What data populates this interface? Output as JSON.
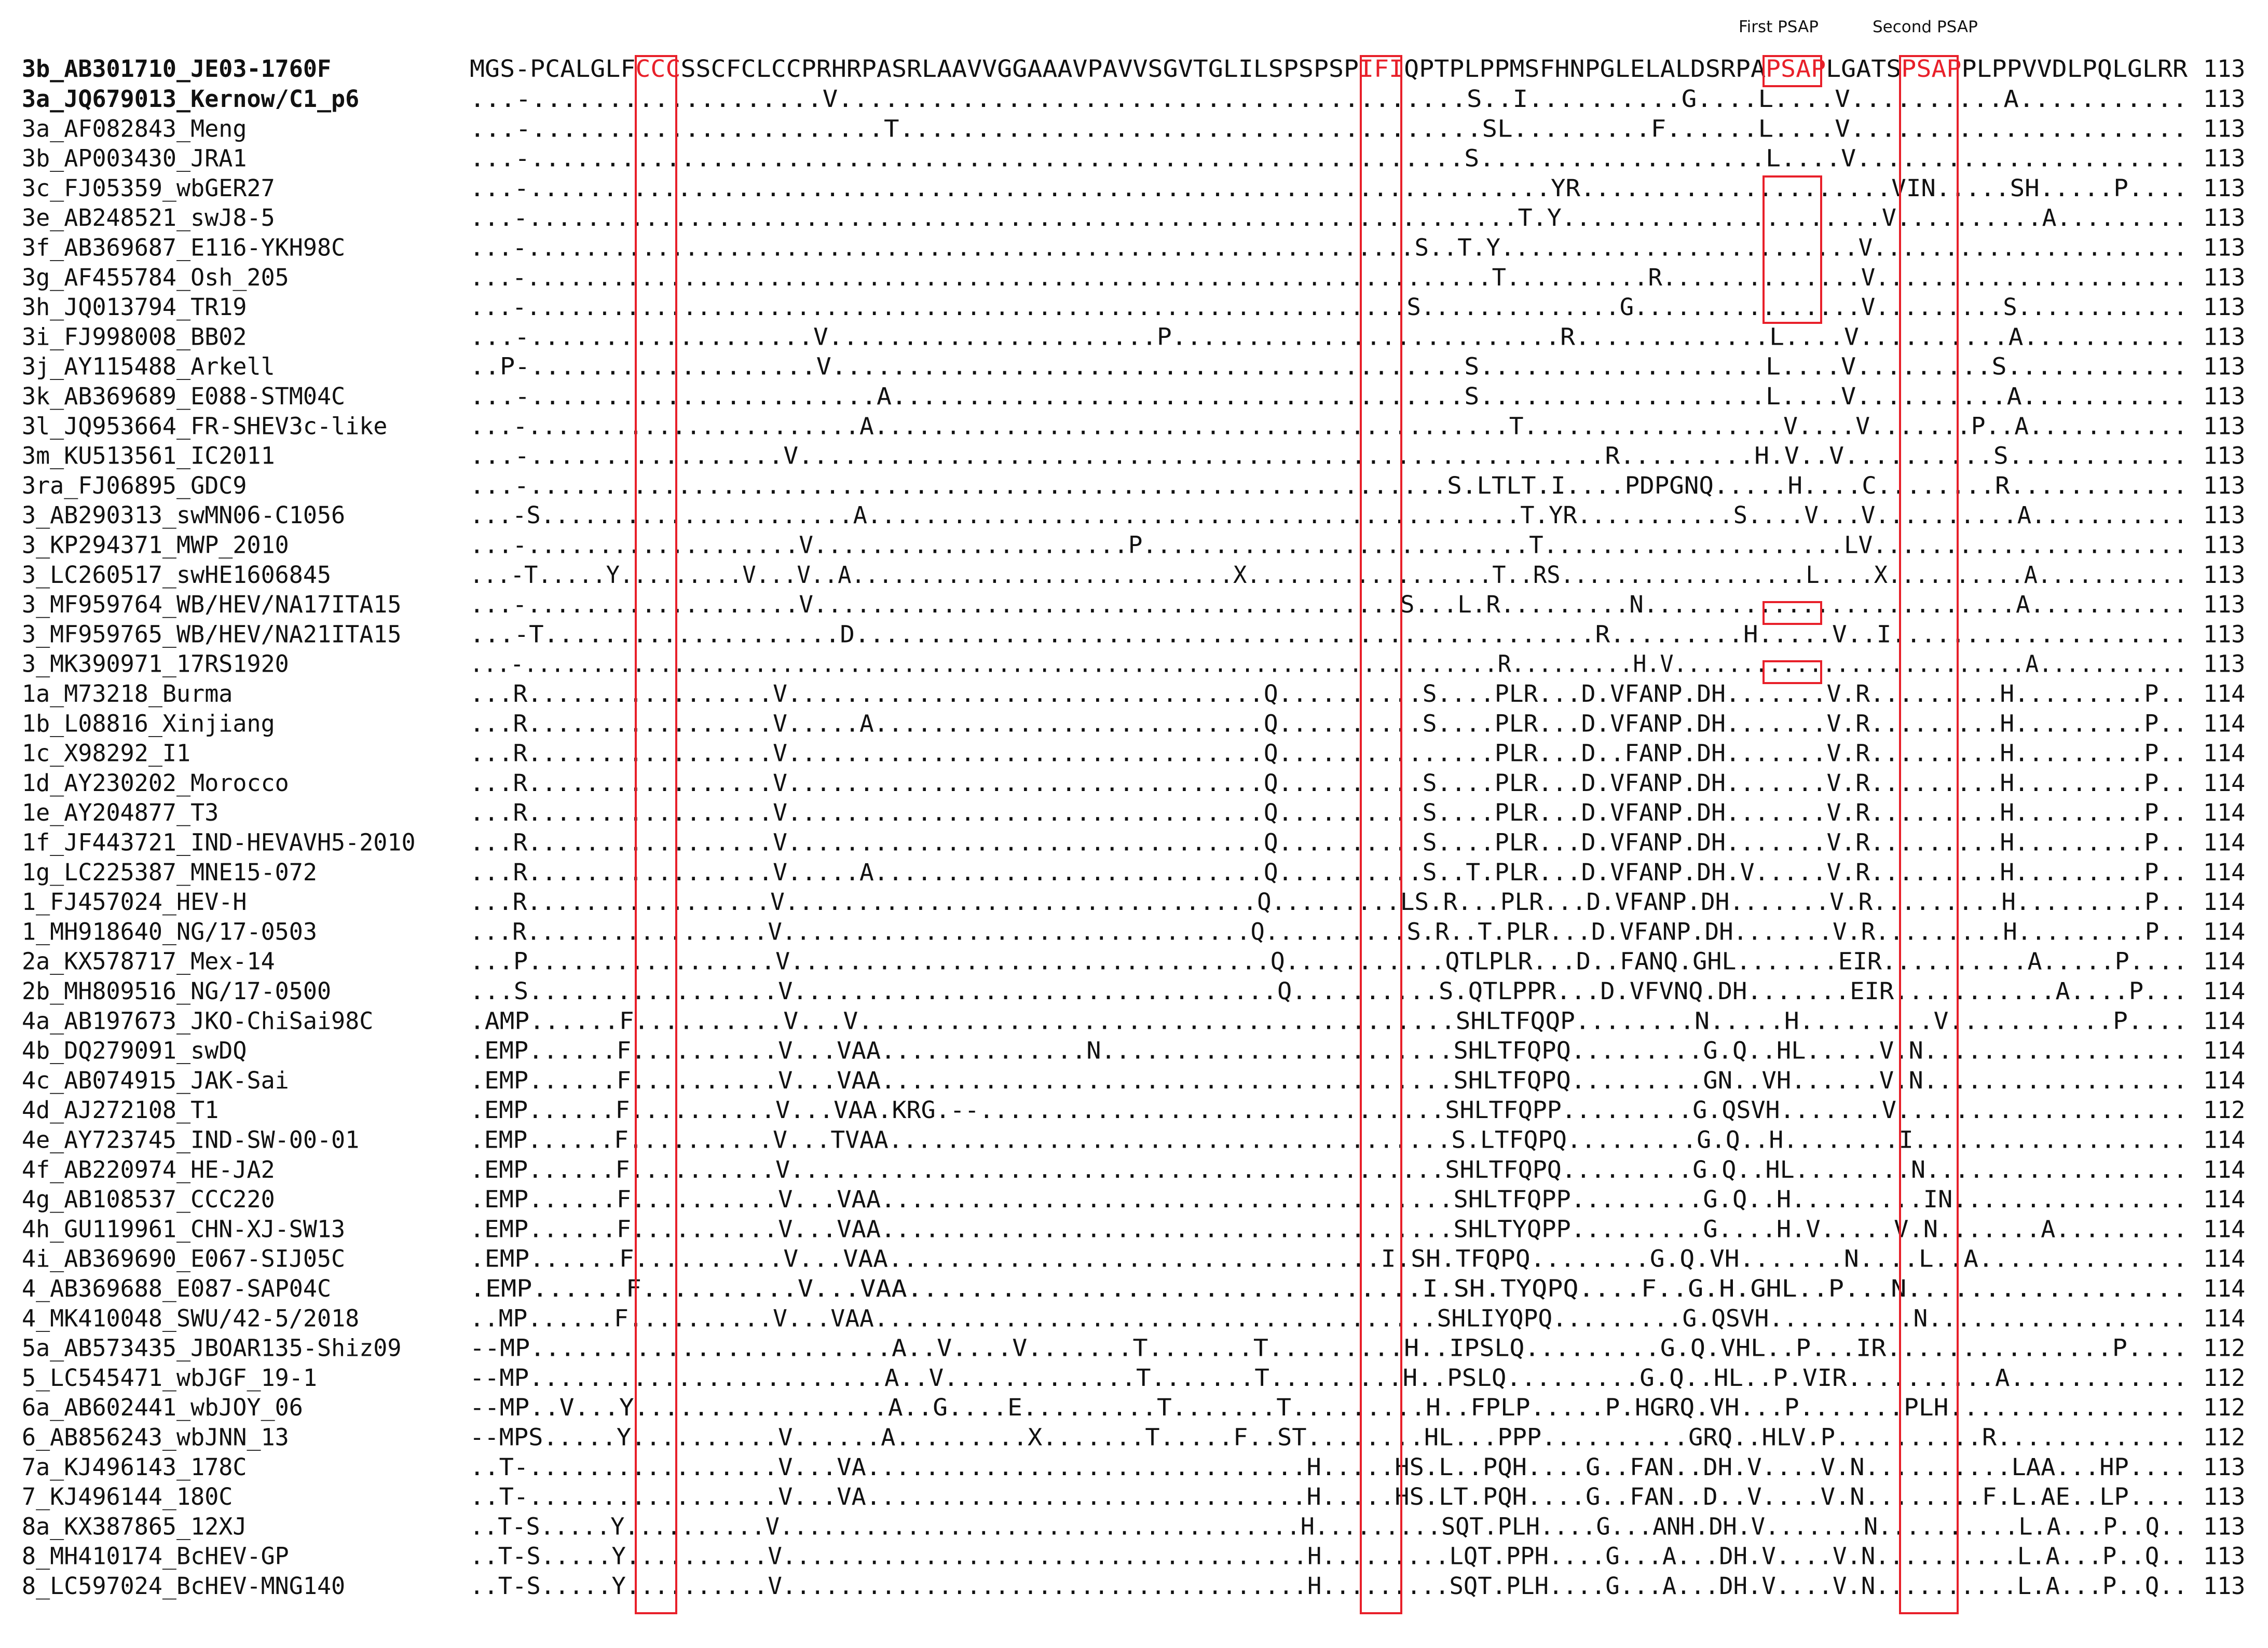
{
  "header": {
    "first_psap": "First PSAP",
    "second_psap": "Second PSAP"
  },
  "colors": {
    "highlight": "#e8202a",
    "text": "#111111"
  },
  "reference": {
    "name": "3b_AB301710_JE03-1760F",
    "parts": [
      {
        "t": "MGS-PCALGLF",
        "h": false
      },
      {
        "t": "CCC",
        "h": true
      },
      {
        "t": "SSCFCLCCPRHRPASRLAAVVGGAAAVPAVVSGVTGLILSPSPSP",
        "h": false
      },
      {
        "t": "IFI",
        "h": true
      },
      {
        "t": "QPTPLPPMSFHNPGLELALDSRPA",
        "h": false
      },
      {
        "t": "PSAP",
        "h": true
      },
      {
        "t": "LGATS",
        "h": false
      },
      {
        "t": "PSAP",
        "h": true
      },
      {
        "t": "PLPPVVDLPQLGLRR",
        "h": false
      }
    ],
    "length": "113"
  },
  "rows": [
    {
      "name": "3a_JQ679013_Kernow/C1_p6",
      "bold": true,
      "seq": "...-...................V.........................................S..I..........G....L....V..........A...........",
      "len": "113"
    },
    {
      "name": "3a_AF082843_Meng",
      "seq": "...-.......................T......................................SL.........F......L....V......................",
      "len": "113"
    },
    {
      "name": "3b_AP003430_JRA1",
      "seq": "...-..............................................................S...................L....V......................",
      "len": "113"
    },
    {
      "name": "3c_FJ05359_wbGER27",
      "seq": "...-.....................................................................YR.....................VIN.....SH.....P....",
      "len": "113"
    },
    {
      "name": "3e_AB248521_swJ8-5",
      "seq": "...-....................................................................T.Y......................V..........A.........",
      "len": "113"
    },
    {
      "name": "3f_AB369687_E116-YKH98C",
      "seq": "...-..............................................................S..T.Y.........................V......................",
      "len": "113"
    },
    {
      "name": "3g_AF455784_Osh_205",
      "seq": "...-....................................................................T..........R..............V......................",
      "len": "113"
    },
    {
      "name": "3h_JQ013794_TR19",
      "seq": "...-..............................................................S..............G................V.........S............",
      "len": "113"
    },
    {
      "name": "3i_FJ998008_BB02",
      "seq": "...-...................V......................P..........................R.............L....V..........A...........",
      "len": "113"
    },
    {
      "name": "3j_AY115488_Arkell",
      "seq": "..P-...................V..........................................S...................L....V.........S............",
      "len": "113"
    },
    {
      "name": "3k_AB369689_E088-STM04C",
      "seq": "...-.......................A......................................S...................L....V..........A...........",
      "len": "113"
    },
    {
      "name": "3l_JQ953664_FR-SHEV3c-like",
      "seq": "...-.......................A............................................T..................V....V.......P..A...........",
      "len": "113"
    },
    {
      "name": "3m_KU513561_IC2011",
      "seq": "...-.................V......................................................R.........H.V..V..........S............",
      "len": "113"
    },
    {
      "name": "3ra_FJ06895_GDC9",
      "seq": "...-..............................................................S.LTLT.I....PDPGNQ.....H....C........R............",
      "len": "113"
    },
    {
      "name": "3_AB290313_swMN06-C1056",
      "seq": "...-S......................A..............................................T.YR...........S....V...V..........A...........",
      "len": "113"
    },
    {
      "name": "3_KP294371_MWP_2010",
      "seq": "...-...................V......................P...........................T.....................LV......................",
      "len": "113"
    },
    {
      "name": "3_LC260517_swHE1606845",
      "seq": "...-T.....Y.........V...V..A............................X..................T..RS..................L....X..........A...........",
      "len": "113"
    },
    {
      "name": "3_MF959764_WB/HEV/NA17ITA15",
      "seq": "...-...................V.........................................S...L.R.........N..........................A...........",
      "len": "113"
    },
    {
      "name": "3_MF959765_WB/HEV/NA21ITA15",
      "seq": "...-T....................D..................................................R.........H.....V..I....................",
      "len": "113"
    },
    {
      "name": "3_MK390971_17RS1920",
      "seq": "...-........................................................................R.........H.V..........................A...........",
      "len": "113"
    },
    {
      "name": "1a_M73218_Burma",
      "seq": "...R.................V.................................Q..........S....PLR...D.VFANP.DH.......V.R.........H.........P..",
      "len": "114"
    },
    {
      "name": "1b_L08816_Xinjiang",
      "seq": "...R.................V.....A...........................Q..........S....PLR...D.VFANP.DH.......V.R.........H.........P..",
      "len": "114"
    },
    {
      "name": "1c_X98292_I1",
      "seq": "...R.................V.................................Q...............PLR...D..FANP.DH.......V.R.........H.........P..",
      "len": "114"
    },
    {
      "name": "1d_AY230202_Morocco",
      "seq": "...R.................V.................................Q..........S....PLR...D.VFANP.DH.......V.R.........H.........P..",
      "len": "114"
    },
    {
      "name": "1e_AY204877_T3",
      "seq": "...R.................V.................................Q..........S....PLR...D.VFANP.DH.......V.R.........H.........P..",
      "len": "114"
    },
    {
      "name": "1f_JF443721_IND-HEVAVH5-2010",
      "seq": "...R.................V.................................Q..........S....PLR...D.VFANP.DH.......V.R.........H.........P..",
      "len": "114"
    },
    {
      "name": "1g_LC225387_MNE15-072",
      "seq": "...R.................V.....A...........................Q..........S..T.PLR...D.VFANP.DH.V.....V.R.........H.........P..",
      "len": "114"
    },
    {
      "name": "1_FJ457024_HEV-H",
      "seq": "...R.................V.................................Q.........LS.R...PLR...D.VFANP.DH.......V.R.........H.........P..",
      "len": "114"
    },
    {
      "name": "1_MH918640_NG/17-0503",
      "seq": "...R.................V.................................Q..........S.R..T.PLR...D.VFANP.DH.......V.R.........H.........P..",
      "len": "114"
    },
    {
      "name": "2a_KX578717_Mex-14",
      "seq": "...P.................V.................................Q...........QTLPLR...D..FANQ.GHL.......EIR..........A.....P....",
      "len": "114"
    },
    {
      "name": "2b_MH809516_NG/17-0500",
      "seq": "...S.................V.................................Q..........S.QTLPPR...D.VFVNQ.DH.......EIR...........A....P...",
      "len": "114"
    },
    {
      "name": "4a_AB197673_JKO-ChiSai98C",
      "seq": ".AMP......F..........V...V........................................SHLTFQQP........N.....H.........V...........P....",
      "len": "114"
    },
    {
      "name": "4b_DQ279091_swDQ",
      "seq": ".EMP......F..........V...VAA..............N........................SHLTFQPQ.........G.Q..HL.....V.N..................",
      "len": "114"
    },
    {
      "name": "4c_AB074915_JAK-Sai",
      "seq": ".EMP......F..........V...VAA.......................................SHLTFQPQ.........GN..VH......V.N..................",
      "len": "114"
    },
    {
      "name": "4d_AJ272108_T1",
      "seq": ".EMP......F..........V...VAA.KRG.--................................SHLTFQPP.........G.QSVH.......V....................",
      "len": "112"
    },
    {
      "name": "4e_AY723745_IND-SW-00-01",
      "seq": ".EMP......F..........V...TVAA.......................................S.LTFQPQ.........G.Q..H........I...................",
      "len": "114"
    },
    {
      "name": "4f_AB220974_HE-JA2",
      "seq": ".EMP......F..........V.............................................SHLTFQPQ.........G.Q..HL........N..................",
      "len": "114"
    },
    {
      "name": "4g_AB108537_CCC220",
      "seq": ".EMP......F..........V...VAA.......................................SHLTFQPP.........G.Q..H.........IN................",
      "len": "114"
    },
    {
      "name": "4h_GU119961_CHN-XJ-SW13",
      "seq": ".EMP......F..........V...VAA.......................................SHLTYQPP.........G....H.V.....V.N.......A.........",
      "len": "114"
    },
    {
      "name": "4i_AB369690_E067-SIJ05C",
      "seq": ".EMP......F..........V...VAA.................................I.SH.TFQPQ........G.Q.VH.......N....L..A..............",
      "len": "114"
    },
    {
      "name": "4_AB369688_E087-SAP04C",
      "seq": ".EMP......F..........V...VAA.................................I.SH.TYQPQ....F..G.H.GHL..P...N..................",
      "len": "114"
    },
    {
      "name": "4_MK410048_SWU/42-5/2018",
      "seq": "..MP......F..........V...VAA.......................................SHLIYQPQ.........G.QSVH..........N..................",
      "len": "114"
    },
    {
      "name": "5a_AB573435_JBOAR135-Shiz09",
      "seq": "--MP........................A..V....V.......T.......T.........H..IPSLQ.........G.Q.VHL..P...IR...............P....",
      "len": "112"
    },
    {
      "name": "5_LC545471_wbJGF_19-1",
      "seq": "--MP........................A..V.............T.......T.........H..PSLQ.........G.Q..HL..P.VIR..........A............",
      "len": "112"
    },
    {
      "name": "6a_AB602441_wbJOY_06",
      "seq": "--MP..V...Y.................A..G....E.........T.......T.........H..FPLP.....P.HGRQ.VH...P.......PLH................",
      "len": "112"
    },
    {
      "name": "6_AB856243_wbJNN_13",
      "seq": "--MPS.....Y..........V......A.........X.......T.....F..ST........HL...PPP..........GRQ..HLV.P..........R.............",
      "len": "112"
    },
    {
      "name": "7a_KJ496143_178C",
      "seq": "..T-.................V...VA..............................H.....HS.L..PQH....G..FAN..DH.V....V.N..........LAA...HP....",
      "len": "113"
    },
    {
      "name": "7_KJ496144_180C",
      "seq": "..T-.................V...VA..............................H.....HS.LT.PQH....G..FAN..D..V....V.N........F.L.AE..LP....",
      "len": "113"
    },
    {
      "name": "8a_KX387865_12XJ",
      "seq": "..T-S.....Y..........V.....................................H.........SQT.PLH....G...ANH.DH.V.......N..........L.A...P..Q..",
      "len": "113"
    },
    {
      "name": "8_MH410174_BcHEV-GP",
      "seq": "..T-S.....Y..........V.....................................H.........LQT.PPH....G...A...DH.V....V.N..........L.A...P..Q..",
      "len": "113"
    },
    {
      "name": "8_LC597024_BcHEV-MNG140",
      "seq": "..T-S.....Y..........V.....................................H.........SQT.PLH....G...A...DH.V....V.N..........L.A...P..Q..",
      "len": "113"
    }
  ]
}
